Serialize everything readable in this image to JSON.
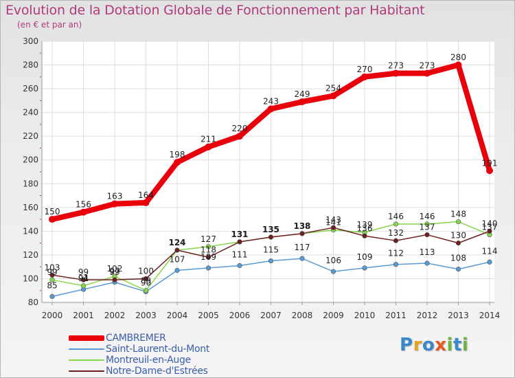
{
  "header": {
    "title": "Evolution de la Dotation Globale de Fonctionnement par Habitant",
    "subtitle": "(en € et par an)"
  },
  "logo": {
    "text": "Proxiti",
    "letters": [
      "P",
      "r",
      "o",
      "x",
      "i",
      "t",
      "i"
    ]
  },
  "colors": {
    "title": "#b03a7a",
    "axis_text": "#333333",
    "grid": "#dddddd"
  },
  "chart_data": {
    "type": "line",
    "title": "Evolution de la Dotation Globale de Fonctionnement par Habitant",
    "subtitle": "(en € et par an)",
    "xlabel": "",
    "ylabel": "",
    "ylim": [
      80,
      300
    ],
    "y_ticks": [
      80,
      100,
      120,
      140,
      160,
      180,
      200,
      220,
      240,
      260,
      280,
      300
    ],
    "x": [
      "2000",
      "2001",
      "2002",
      "2003",
      "2004",
      "2005",
      "2006",
      "2007",
      "2008",
      "2009",
      "2010",
      "2011",
      "2012",
      "2013",
      "2014"
    ],
    "grid": true,
    "legend_position": "bottom-left",
    "series": [
      {
        "name": "CAMBREMER",
        "color": "#e8000b",
        "values": [
          150,
          156,
          163,
          164,
          198,
          211,
          220,
          243,
          249,
          254,
          270,
          273,
          273,
          280,
          191
        ]
      },
      {
        "name": "Saint-Laurent-du-Mont",
        "color": "#5a9ad2",
        "values": [
          85,
          91,
          97,
          89,
          107,
          109,
          111,
          115,
          117,
          106,
          109,
          112,
          113,
          108,
          114
        ]
      },
      {
        "name": "Montreuil-en-Auge",
        "color": "#86d64a",
        "values": [
          99,
          94,
          102,
          90,
          124,
          127,
          131,
          135,
          138,
          141,
          139,
          146,
          146,
          148,
          137
        ]
      },
      {
        "name": "Notre-Dame-d'Estrées",
        "color": "#6b1f1f",
        "values": [
          103,
          99,
          99,
          100,
          124,
          118,
          131,
          135,
          138,
          143,
          136,
          132,
          137,
          130,
          140
        ]
      }
    ]
  }
}
